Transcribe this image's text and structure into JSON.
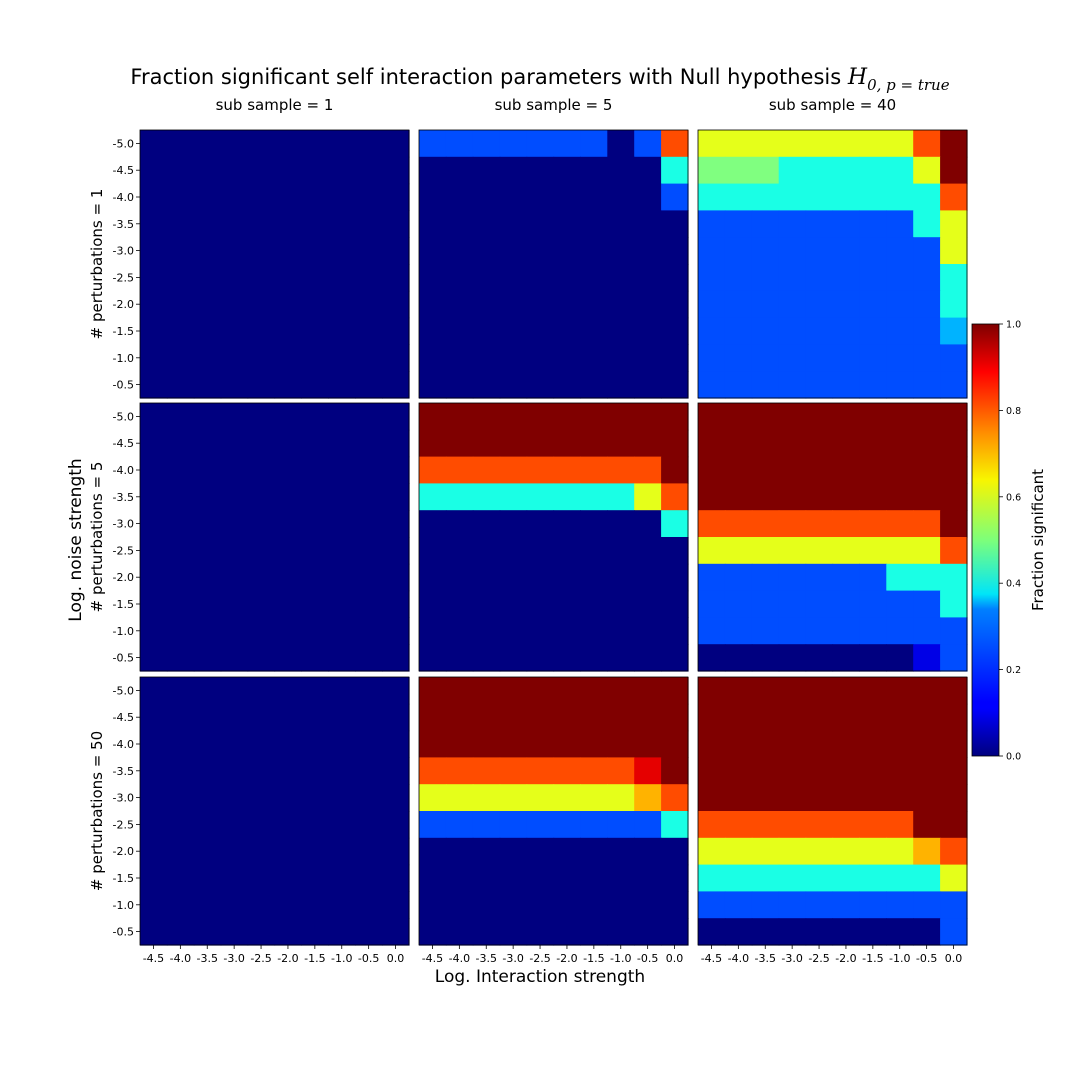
{
  "title_prefix": "Fraction significant self interaction parameters with Null hypothesis ",
  "title_math": "H",
  "title_sub": "0, p = true",
  "xlabel": "Log. Interaction strength",
  "ylabel": "Log. noise strength",
  "colorbar_label": "Fraction significant",
  "colorbar_ticks": [
    "0.0",
    "0.2",
    "0.4",
    "0.6",
    "0.8",
    "1.0"
  ],
  "column_titles": [
    "sub sample = 1",
    "sub sample = 5",
    "sub sample = 40"
  ],
  "row_labels": [
    "# perturbations = 1",
    "# perturbations = 5",
    "# perturbations = 50"
  ],
  "chart_data": {
    "type": "heatmap",
    "colormap": "jet",
    "vmin": 0.0,
    "vmax": 1.0,
    "x_ticks": [
      "-4.5",
      "-4.0",
      "-3.5",
      "-3.0",
      "-2.5",
      "-2.0",
      "-1.5",
      "-1.0",
      "-0.5",
      "0.0"
    ],
    "y_ticks": [
      "-5.0",
      "-4.5",
      "-4.0",
      "-3.5",
      "-3.0",
      "-2.5",
      "-2.0",
      "-1.5",
      "-1.0",
      "-0.5"
    ],
    "panels": [
      {
        "row": "# perturbations = 1",
        "col": "sub sample = 1",
        "z": [
          [
            0,
            0,
            0,
            0,
            0,
            0,
            0,
            0,
            0,
            0
          ],
          [
            0,
            0,
            0,
            0,
            0,
            0,
            0,
            0,
            0,
            0
          ],
          [
            0,
            0,
            0,
            0,
            0,
            0,
            0,
            0,
            0,
            0
          ],
          [
            0,
            0,
            0,
            0,
            0,
            0,
            0,
            0,
            0,
            0
          ],
          [
            0,
            0,
            0,
            0,
            0,
            0,
            0,
            0,
            0,
            0
          ],
          [
            0,
            0,
            0,
            0,
            0,
            0,
            0,
            0,
            0,
            0
          ],
          [
            0,
            0,
            0,
            0,
            0,
            0,
            0,
            0,
            0,
            0
          ],
          [
            0,
            0,
            0,
            0,
            0,
            0,
            0,
            0,
            0,
            0
          ],
          [
            0,
            0,
            0,
            0,
            0,
            0,
            0,
            0,
            0,
            0
          ],
          [
            0,
            0,
            0,
            0,
            0,
            0,
            0,
            0,
            0,
            0
          ]
        ]
      },
      {
        "row": "# perturbations = 1",
        "col": "sub sample = 5",
        "z": [
          [
            0.2,
            0.2,
            0.2,
            0.2,
            0.2,
            0.2,
            0.2,
            0,
            0.2,
            0.8
          ],
          [
            0,
            0,
            0,
            0,
            0,
            0,
            0,
            0,
            0,
            0.4
          ],
          [
            0,
            0,
            0,
            0,
            0,
            0,
            0,
            0,
            0,
            0.2
          ],
          [
            0,
            0,
            0,
            0,
            0,
            0,
            0,
            0,
            0,
            0
          ],
          [
            0,
            0,
            0,
            0,
            0,
            0,
            0,
            0,
            0,
            0
          ],
          [
            0,
            0,
            0,
            0,
            0,
            0,
            0,
            0,
            0,
            0
          ],
          [
            0,
            0,
            0,
            0,
            0,
            0,
            0,
            0,
            0,
            0
          ],
          [
            0,
            0,
            0,
            0,
            0,
            0,
            0,
            0,
            0,
            0
          ],
          [
            0,
            0,
            0,
            0,
            0,
            0,
            0,
            0,
            0,
            0
          ],
          [
            0,
            0,
            0,
            0,
            0,
            0,
            0,
            0,
            0,
            0
          ]
        ]
      },
      {
        "row": "# perturbations = 1",
        "col": "sub sample = 40",
        "z": [
          [
            0.6,
            0.6,
            0.6,
            0.6,
            0.6,
            0.6,
            0.6,
            0.6,
            0.8,
            1.0
          ],
          [
            0.5,
            0.5,
            0.5,
            0.4,
            0.4,
            0.4,
            0.4,
            0.4,
            0.6,
            1.0
          ],
          [
            0.4,
            0.4,
            0.4,
            0.4,
            0.4,
            0.4,
            0.4,
            0.4,
            0.4,
            0.8
          ],
          [
            0.2,
            0.2,
            0.2,
            0.2,
            0.2,
            0.2,
            0.2,
            0.2,
            0.4,
            0.6
          ],
          [
            0.2,
            0.2,
            0.2,
            0.2,
            0.2,
            0.2,
            0.2,
            0.2,
            0.2,
            0.6
          ],
          [
            0.2,
            0.2,
            0.2,
            0.2,
            0.2,
            0.2,
            0.2,
            0.2,
            0.2,
            0.4
          ],
          [
            0.2,
            0.2,
            0.2,
            0.2,
            0.2,
            0.2,
            0.2,
            0.2,
            0.2,
            0.4
          ],
          [
            0.2,
            0.2,
            0.2,
            0.2,
            0.2,
            0.2,
            0.2,
            0.2,
            0.2,
            0.3
          ],
          [
            0.2,
            0.2,
            0.2,
            0.2,
            0.2,
            0.2,
            0.2,
            0.2,
            0.2,
            0.2
          ],
          [
            0.2,
            0.2,
            0.2,
            0.2,
            0.2,
            0.2,
            0.2,
            0.2,
            0.2,
            0.2
          ]
        ]
      },
      {
        "row": "# perturbations = 5",
        "col": "sub sample = 1",
        "z": [
          [
            0,
            0,
            0,
            0,
            0,
            0,
            0,
            0,
            0,
            0
          ],
          [
            0,
            0,
            0,
            0,
            0,
            0,
            0,
            0,
            0,
            0
          ],
          [
            0,
            0,
            0,
            0,
            0,
            0,
            0,
            0,
            0,
            0
          ],
          [
            0,
            0,
            0,
            0,
            0,
            0,
            0,
            0,
            0,
            0
          ],
          [
            0,
            0,
            0,
            0,
            0,
            0,
            0,
            0,
            0,
            0
          ],
          [
            0,
            0,
            0,
            0,
            0,
            0,
            0,
            0,
            0,
            0
          ],
          [
            0,
            0,
            0,
            0,
            0,
            0,
            0,
            0,
            0,
            0
          ],
          [
            0,
            0,
            0,
            0,
            0,
            0,
            0,
            0,
            0,
            0
          ],
          [
            0,
            0,
            0,
            0,
            0,
            0,
            0,
            0,
            0,
            0
          ],
          [
            0,
            0,
            0,
            0,
            0,
            0,
            0,
            0,
            0,
            0
          ]
        ]
      },
      {
        "row": "# perturbations = 5",
        "col": "sub sample = 5",
        "z": [
          [
            1.0,
            1.0,
            1.0,
            1.0,
            1.0,
            1.0,
            1.0,
            1.0,
            1.0,
            1.0
          ],
          [
            1.0,
            1.0,
            1.0,
            1.0,
            1.0,
            1.0,
            1.0,
            1.0,
            1.0,
            1.0
          ],
          [
            0.8,
            0.8,
            0.8,
            0.8,
            0.8,
            0.8,
            0.8,
            0.8,
            0.8,
            1.0
          ],
          [
            0.4,
            0.4,
            0.4,
            0.4,
            0.4,
            0.4,
            0.4,
            0.4,
            0.6,
            0.8
          ],
          [
            0,
            0,
            0,
            0,
            0,
            0,
            0,
            0,
            0,
            0.4
          ],
          [
            0,
            0,
            0,
            0,
            0,
            0,
            0,
            0,
            0,
            0
          ],
          [
            0,
            0,
            0,
            0,
            0,
            0,
            0,
            0,
            0,
            0
          ],
          [
            0,
            0,
            0,
            0,
            0,
            0,
            0,
            0,
            0,
            0
          ],
          [
            0,
            0,
            0,
            0,
            0,
            0,
            0,
            0,
            0,
            0
          ],
          [
            0,
            0,
            0,
            0,
            0,
            0,
            0,
            0,
            0,
            0
          ]
        ]
      },
      {
        "row": "# perturbations = 5",
        "col": "sub sample = 40",
        "z": [
          [
            1.0,
            1.0,
            1.0,
            1.0,
            1.0,
            1.0,
            1.0,
            1.0,
            1.0,
            1.0
          ],
          [
            1.0,
            1.0,
            1.0,
            1.0,
            1.0,
            1.0,
            1.0,
            1.0,
            1.0,
            1.0
          ],
          [
            1.0,
            1.0,
            1.0,
            1.0,
            1.0,
            1.0,
            1.0,
            1.0,
            1.0,
            1.0
          ],
          [
            1.0,
            1.0,
            1.0,
            1.0,
            1.0,
            1.0,
            1.0,
            1.0,
            1.0,
            1.0
          ],
          [
            0.8,
            0.8,
            0.8,
            0.8,
            0.8,
            0.8,
            0.8,
            0.8,
            0.8,
            1.0
          ],
          [
            0.6,
            0.6,
            0.6,
            0.6,
            0.6,
            0.6,
            0.6,
            0.6,
            0.6,
            0.8
          ],
          [
            0.2,
            0.2,
            0.2,
            0.2,
            0.2,
            0.2,
            0.2,
            0.4,
            0.4,
            0.4
          ],
          [
            0.2,
            0.2,
            0.2,
            0.2,
            0.2,
            0.2,
            0.2,
            0.2,
            0.2,
            0.4
          ],
          [
            0.2,
            0.2,
            0.2,
            0.2,
            0.2,
            0.2,
            0.2,
            0.2,
            0.2,
            0.2
          ],
          [
            0,
            0,
            0,
            0,
            0,
            0,
            0,
            0,
            0.1,
            0.2
          ]
        ]
      },
      {
        "row": "# perturbations = 50",
        "col": "sub sample = 1",
        "z": [
          [
            0,
            0,
            0,
            0,
            0,
            0,
            0,
            0,
            0,
            0
          ],
          [
            0,
            0,
            0,
            0,
            0,
            0,
            0,
            0,
            0,
            0
          ],
          [
            0,
            0,
            0,
            0,
            0,
            0,
            0,
            0,
            0,
            0
          ],
          [
            0,
            0,
            0,
            0,
            0,
            0,
            0,
            0,
            0,
            0
          ],
          [
            0,
            0,
            0,
            0,
            0,
            0,
            0,
            0,
            0,
            0
          ],
          [
            0,
            0,
            0,
            0,
            0,
            0,
            0,
            0,
            0,
            0
          ],
          [
            0,
            0,
            0,
            0,
            0,
            0,
            0,
            0,
            0,
            0
          ],
          [
            0,
            0,
            0,
            0,
            0,
            0,
            0,
            0,
            0,
            0
          ],
          [
            0,
            0,
            0,
            0,
            0,
            0,
            0,
            0,
            0,
            0
          ],
          [
            0,
            0,
            0,
            0,
            0,
            0,
            0,
            0,
            0,
            0
          ]
        ]
      },
      {
        "row": "# perturbations = 50",
        "col": "sub sample = 5",
        "z": [
          [
            1.0,
            1.0,
            1.0,
            1.0,
            1.0,
            1.0,
            1.0,
            1.0,
            1.0,
            1.0
          ],
          [
            1.0,
            1.0,
            1.0,
            1.0,
            1.0,
            1.0,
            1.0,
            1.0,
            1.0,
            1.0
          ],
          [
            1.0,
            1.0,
            1.0,
            1.0,
            1.0,
            1.0,
            1.0,
            1.0,
            1.0,
            1.0
          ],
          [
            0.8,
            0.8,
            0.8,
            0.8,
            0.8,
            0.8,
            0.8,
            0.8,
            0.9,
            1.0
          ],
          [
            0.6,
            0.6,
            0.6,
            0.6,
            0.6,
            0.6,
            0.6,
            0.6,
            0.7,
            0.8
          ],
          [
            0.2,
            0.2,
            0.2,
            0.2,
            0.2,
            0.2,
            0.2,
            0.2,
            0.2,
            0.4
          ],
          [
            0,
            0,
            0,
            0,
            0,
            0,
            0,
            0,
            0,
            0
          ],
          [
            0,
            0,
            0,
            0,
            0,
            0,
            0,
            0,
            0,
            0
          ],
          [
            0,
            0,
            0,
            0,
            0,
            0,
            0,
            0,
            0,
            0
          ],
          [
            0,
            0,
            0,
            0,
            0,
            0,
            0,
            0,
            0,
            0
          ]
        ]
      },
      {
        "row": "# perturbations = 50",
        "col": "sub sample = 40",
        "z": [
          [
            1.0,
            1.0,
            1.0,
            1.0,
            1.0,
            1.0,
            1.0,
            1.0,
            1.0,
            1.0
          ],
          [
            1.0,
            1.0,
            1.0,
            1.0,
            1.0,
            1.0,
            1.0,
            1.0,
            1.0,
            1.0
          ],
          [
            1.0,
            1.0,
            1.0,
            1.0,
            1.0,
            1.0,
            1.0,
            1.0,
            1.0,
            1.0
          ],
          [
            1.0,
            1.0,
            1.0,
            1.0,
            1.0,
            1.0,
            1.0,
            1.0,
            1.0,
            1.0
          ],
          [
            1.0,
            1.0,
            1.0,
            1.0,
            1.0,
            1.0,
            1.0,
            1.0,
            1.0,
            1.0
          ],
          [
            0.8,
            0.8,
            0.8,
            0.8,
            0.8,
            0.8,
            0.8,
            0.8,
            1.0,
            1.0
          ],
          [
            0.6,
            0.6,
            0.6,
            0.6,
            0.6,
            0.6,
            0.6,
            0.6,
            0.7,
            0.8
          ],
          [
            0.4,
            0.4,
            0.4,
            0.4,
            0.4,
            0.4,
            0.4,
            0.4,
            0.4,
            0.6
          ],
          [
            0.2,
            0.2,
            0.2,
            0.2,
            0.2,
            0.2,
            0.2,
            0.2,
            0.2,
            0.2
          ],
          [
            0,
            0,
            0,
            0,
            0,
            0,
            0,
            0,
            0,
            0.2
          ]
        ]
      }
    ]
  }
}
